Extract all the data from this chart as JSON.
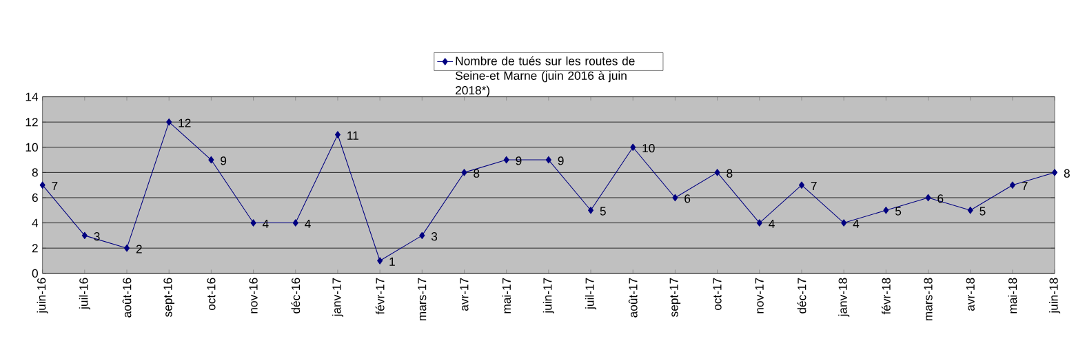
{
  "chart_data": {
    "type": "line",
    "categories": [
      "juin-16",
      "juil-16",
      "août-16",
      "sept-16",
      "oct-16",
      "nov-16",
      "déc-16",
      "janv-17",
      "févr-17",
      "mars-17",
      "avr-17",
      "mai-17",
      "juin-17",
      "juil-17",
      "août-17",
      "sept-17",
      "oct-17",
      "nov-17",
      "déc-17",
      "janv-18",
      "févr-18",
      "mars-18",
      "avr-18",
      "mai-18",
      "juin-18"
    ],
    "series": [
      {
        "name": "Nombre de tués sur les routes de Seine-et Marne (juin 2016 à juin 2018*)",
        "color": "#000080",
        "values": [
          7,
          3,
          2,
          12,
          9,
          4,
          4,
          11,
          1,
          3,
          8,
          9,
          9,
          5,
          10,
          6,
          8,
          4,
          7,
          4,
          5,
          6,
          5,
          7,
          8
        ]
      }
    ],
    "ylim": [
      0,
      14
    ],
    "yticks": [
      0,
      2,
      4,
      6,
      8,
      10,
      12,
      14
    ],
    "grid": "y",
    "legend": "top",
    "marker": "diamond",
    "line_style": "solid",
    "data_labels": true
  }
}
